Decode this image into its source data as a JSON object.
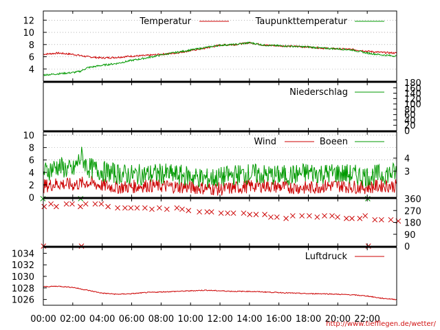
{
  "footer": {
    "url": "http://www.tiefflegen.de/wetter/"
  },
  "time_axis": {
    "labels": [
      "00:00",
      "02:00",
      "04:00",
      "06:00",
      "08:00",
      "10:00",
      "12:00",
      "14:00",
      "16:00",
      "18:00",
      "20:00",
      "22:00"
    ],
    "range_hours": [
      0,
      24
    ]
  },
  "colors": {
    "primary": "#cc0000",
    "secondary": "#009900",
    "grid": "#888888"
  },
  "chart_data": [
    {
      "type": "line",
      "id": "temperature",
      "ylim": [
        2,
        13.5
      ],
      "yticks": [
        4,
        6,
        8,
        10,
        12
      ],
      "grid": true,
      "legend": "top-right",
      "series": [
        {
          "name": "Temperatur",
          "color": "#cc0000",
          "x": [
            0,
            1,
            2,
            3,
            4,
            5,
            6,
            7,
            8,
            9,
            10,
            11,
            12,
            13,
            14,
            15,
            16,
            17,
            18,
            19,
            20,
            21,
            22,
            23,
            24
          ],
          "y": [
            6.4,
            6.6,
            6.4,
            6.0,
            5.8,
            5.9,
            6.1,
            6.2,
            6.4,
            6.6,
            7.0,
            7.4,
            7.9,
            8.0,
            8.3,
            7.9,
            7.8,
            7.7,
            7.6,
            7.4,
            7.3,
            7.2,
            6.9,
            6.7,
            6.6
          ]
        },
        {
          "name": "Taupunkttemperatur",
          "color": "#009900",
          "x": [
            0,
            1,
            2,
            2.5,
            3,
            4,
            5,
            6,
            7,
            8,
            9,
            10,
            11,
            12,
            13,
            14,
            15,
            16,
            17,
            18,
            19,
            20,
            21,
            22,
            23,
            24
          ],
          "y": [
            3.0,
            3.2,
            3.4,
            3.6,
            4.2,
            4.6,
            4.9,
            5.4,
            5.8,
            6.3,
            6.7,
            7.1,
            7.5,
            7.9,
            8.0,
            8.3,
            7.9,
            7.8,
            7.7,
            7.6,
            7.4,
            7.3,
            7.1,
            6.6,
            6.3,
            6.1
          ]
        }
      ]
    },
    {
      "type": "line",
      "id": "precipitation",
      "ylim": [
        0,
        180
      ],
      "yticks_right": [
        0,
        20,
        40,
        60,
        80,
        100,
        120,
        140,
        160,
        180
      ],
      "legend": "top-right",
      "series": [
        {
          "name": "Niederschlag",
          "color": "#009900",
          "x": [
            0,
            24
          ],
          "y": [
            0,
            0
          ]
        }
      ]
    },
    {
      "type": "line",
      "id": "wind",
      "ylim": [
        0,
        10.5
      ],
      "yticks": [
        0,
        2,
        4,
        6,
        8,
        10
      ],
      "yticks_right": [
        "3",
        "4"
      ],
      "grid": true,
      "legend": "top-right",
      "series": [
        {
          "name": "Wind",
          "color": "#cc0000",
          "x": [
            0,
            1,
            2,
            3,
            4,
            5,
            6,
            7,
            8,
            9,
            10,
            11,
            12,
            13,
            14,
            15,
            16,
            17,
            18,
            19,
            20,
            21,
            22,
            23,
            24
          ],
          "y": [
            1.8,
            2.2,
            2.0,
            2.4,
            1.9,
            1.6,
            1.7,
            1.9,
            1.8,
            1.7,
            1.6,
            1.5,
            1.3,
            1.5,
            1.8,
            1.9,
            1.7,
            1.6,
            1.5,
            1.8,
            1.9,
            1.7,
            1.6,
            1.9,
            1.8
          ]
        },
        {
          "name": "Boeen",
          "color": "#009900",
          "x": [
            0,
            1,
            2,
            2.6,
            3,
            4,
            5,
            6,
            7,
            8,
            9,
            10,
            11,
            12,
            13,
            14,
            15,
            16,
            17,
            18,
            19,
            20,
            21,
            22,
            23,
            24
          ],
          "y": [
            4.0,
            5.0,
            4.2,
            6.6,
            4.8,
            4.2,
            3.8,
            3.6,
            3.7,
            3.8,
            3.6,
            3.4,
            3.0,
            3.2,
            3.6,
            3.8,
            3.6,
            3.5,
            3.6,
            4.0,
            3.8,
            3.9,
            3.6,
            3.4,
            3.7,
            4.0
          ]
        }
      ]
    },
    {
      "type": "scatter",
      "id": "wind-direction",
      "ylim": [
        0,
        360
      ],
      "yticks_right": [
        0,
        90,
        180,
        270,
        360
      ],
      "series": [
        {
          "name": "",
          "color": "#cc0000",
          "x": [
            0,
            0.5,
            1,
            1.5,
            2,
            2.5,
            3,
            3.5,
            4,
            4.5,
            5,
            5.5,
            6,
            6.5,
            7,
            7.5,
            8,
            8.5,
            9,
            9.5,
            10,
            10.5,
            11,
            11.5,
            12,
            12.5,
            13,
            13.5,
            14,
            14.5,
            15,
            15.5,
            16,
            16.5,
            17,
            17.5,
            18,
            18.5,
            19,
            19.5,
            20,
            20.5,
            21,
            21.5,
            22,
            22.5,
            23,
            23.5,
            24
          ],
          "y": [
            300,
            320,
            300,
            320,
            320,
            300,
            320,
            320,
            320,
            300,
            290,
            290,
            290,
            290,
            290,
            280,
            290,
            280,
            290,
            280,
            270,
            260,
            260,
            260,
            250,
            250,
            250,
            250,
            240,
            240,
            240,
            220,
            220,
            210,
            230,
            230,
            230,
            220,
            230,
            230,
            220,
            210,
            210,
            210,
            230,
            200,
            200,
            200,
            190
          ]
        },
        {
          "name": "",
          "color": "#cc0000",
          "x": [
            0,
            2.5,
            22
          ],
          "y": [
            0,
            0,
            0
          ]
        },
        {
          "name": "",
          "color": "#009900",
          "x": [
            0,
            2.6,
            22
          ],
          "y": [
            360,
            360,
            360
          ]
        }
      ]
    },
    {
      "type": "line",
      "id": "pressure",
      "ylim": [
        1025,
        1035
      ],
      "yticks": [
        1026,
        1028,
        1030,
        1032,
        1034
      ],
      "legend": "top-right",
      "series": [
        {
          "name": "Luftdruck",
          "color": "#cc0000",
          "x": [
            0,
            1,
            2,
            3,
            4,
            5,
            6,
            7,
            8,
            9,
            10,
            11,
            12,
            13,
            14,
            15,
            16,
            17,
            18,
            19,
            20,
            21,
            22,
            23,
            24
          ],
          "y": [
            1028.2,
            1028.3,
            1028.1,
            1027.6,
            1027.1,
            1026.9,
            1027.0,
            1027.2,
            1027.3,
            1027.4,
            1027.5,
            1027.6,
            1027.5,
            1027.4,
            1027.4,
            1027.3,
            1027.2,
            1027.1,
            1027.0,
            1027.0,
            1026.9,
            1026.8,
            1026.6,
            1026.2,
            1026.0
          ]
        }
      ]
    }
  ]
}
